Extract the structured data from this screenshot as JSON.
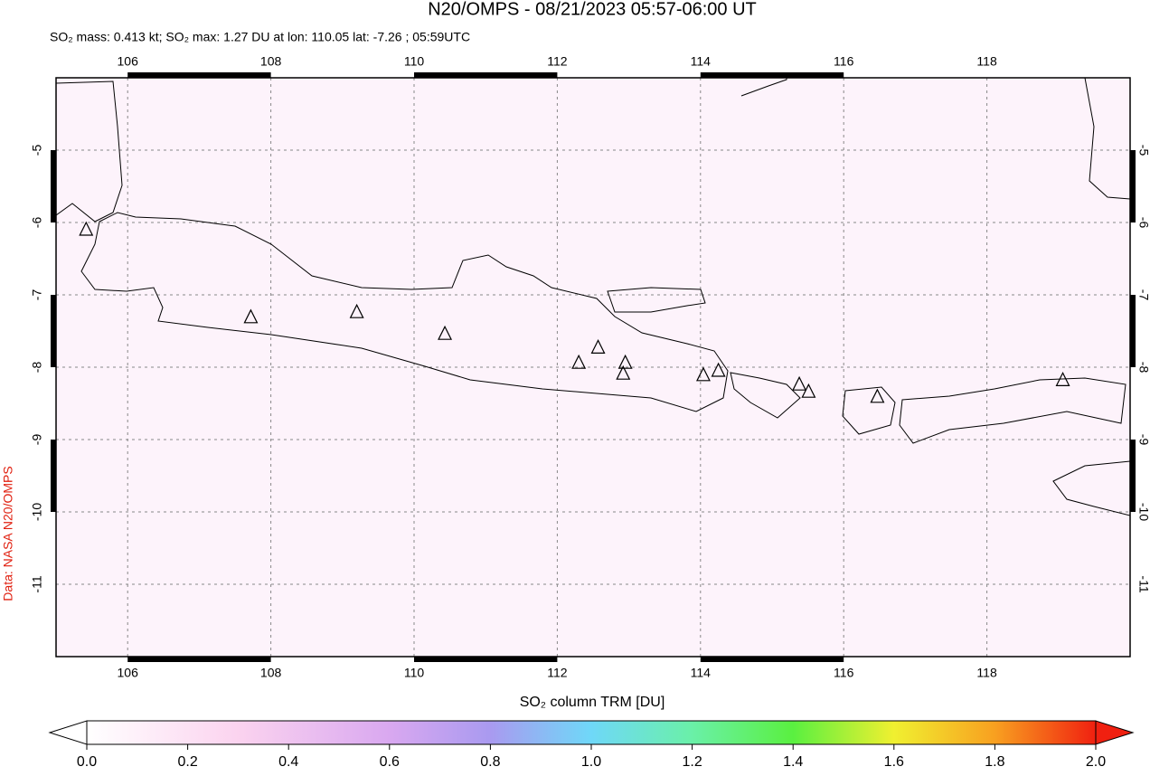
{
  "title": "N20/OMPS - 08/21/2023 05:57-06:00 UT",
  "subtitle": "SO₂ mass: 0.413 kt; SO₂ max: 1.27 DU at lon: 110.05 lat: -7.26 ; 05:59UTC",
  "credit": "Data: NASA N20/OMPS",
  "map": {
    "xlim": [
      105,
      120
    ],
    "ylim": [
      -12,
      -4
    ],
    "xticks": [
      106,
      108,
      110,
      112,
      114,
      116,
      118
    ],
    "yticks": [
      -5,
      -6,
      -7,
      -8,
      -9,
      -10,
      -11
    ],
    "grid": true,
    "volcanoes": {
      "lon": [
        105.42,
        107.72,
        109.2,
        110.43,
        112.3,
        112.57,
        112.95,
        112.92,
        114.04,
        114.25,
        115.38,
        115.51,
        116.47,
        119.06
      ],
      "lat": [
        -6.1,
        -7.31,
        -7.24,
        -7.54,
        -7.94,
        -7.73,
        -7.94,
        -8.09,
        -8.11,
        -8.05,
        -8.24,
        -8.34,
        -8.41,
        -8.18
      ]
    }
  },
  "colorbar": {
    "label": "SO₂ column TRM [DU]",
    "range": [
      0,
      2
    ],
    "ticks": [
      {
        "value": 0,
        "label": "0.0"
      },
      {
        "value": 0.2,
        "label": "0.2"
      },
      {
        "value": 0.4,
        "label": "0.4"
      },
      {
        "value": 0.6,
        "label": "0.6"
      },
      {
        "value": 0.8,
        "label": "0.8"
      },
      {
        "value": 1,
        "label": "1.0"
      },
      {
        "value": 1.2,
        "label": "1.2"
      },
      {
        "value": 1.4,
        "label": "1.4"
      },
      {
        "value": 1.6,
        "label": "1.6"
      },
      {
        "value": 1.8,
        "label": "1.8"
      },
      {
        "value": 2,
        "label": "2.0"
      }
    ]
  }
}
